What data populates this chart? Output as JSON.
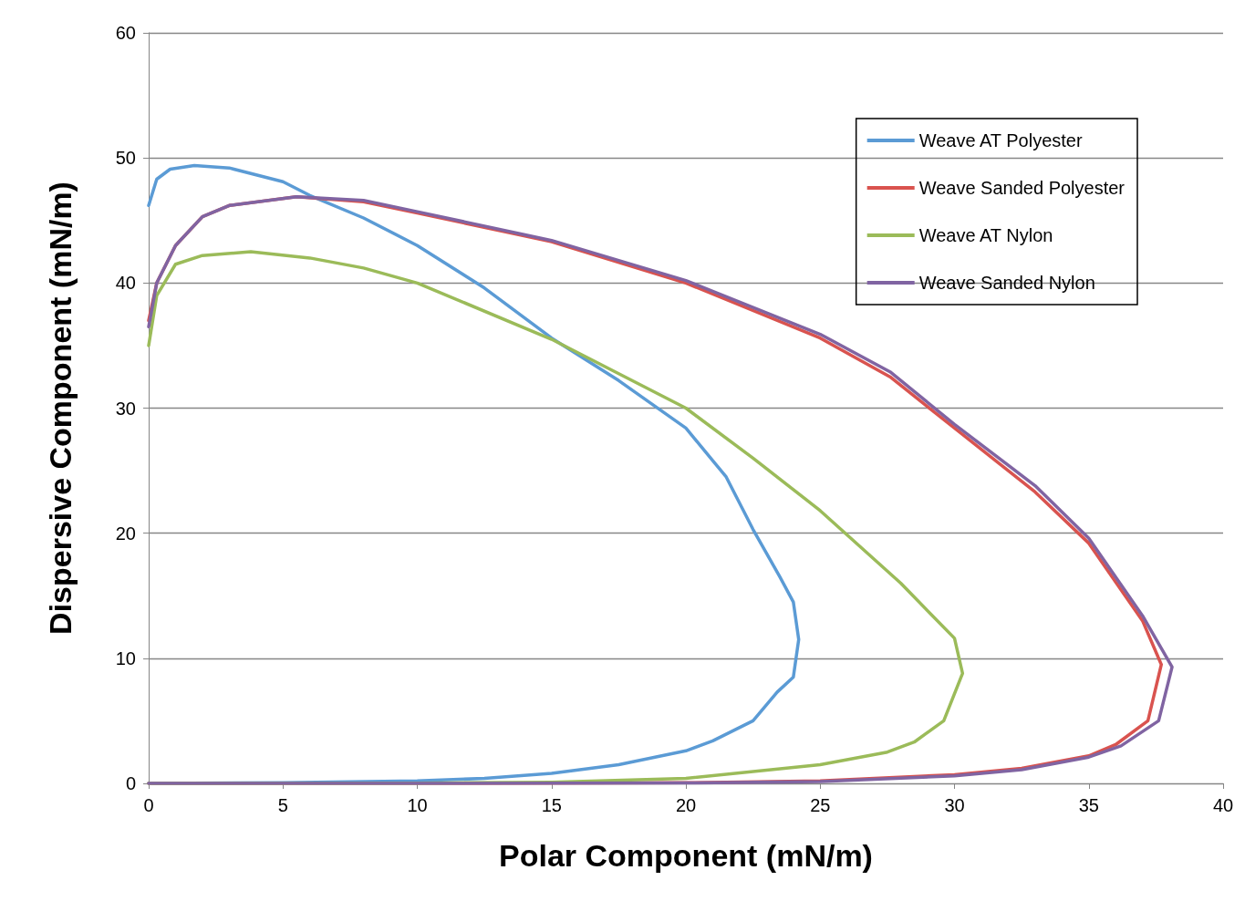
{
  "chart_data": {
    "type": "line",
    "xlabel": "Polar Component (mN/m)",
    "ylabel": "Dispersive Component (mN/m)",
    "xlim": [
      0,
      40
    ],
    "ylim": [
      0,
      60
    ],
    "xticks": [
      0,
      5,
      10,
      15,
      20,
      25,
      30,
      35,
      40
    ],
    "yticks": [
      0,
      10,
      20,
      30,
      40,
      50,
      60
    ],
    "grid": "y",
    "legend": "top right",
    "marker": "none",
    "line_style": "solid",
    "series": [
      {
        "name": "Weave AT Polyester",
        "color": "#5b9bd5",
        "x": [
          0,
          0.3,
          0.8,
          1.7,
          3,
          5,
          6,
          8,
          10,
          12.5,
          15,
          17.5,
          20,
          21.5,
          22.5,
          23.5,
          24,
          24.2,
          24,
          23.4,
          22.5,
          21,
          20,
          17.5,
          15,
          12.5,
          10,
          5,
          0
        ],
        "values": [
          46.2,
          48.3,
          49.1,
          49.4,
          49.2,
          48.1,
          47,
          45.2,
          43,
          39.6,
          35.6,
          32.2,
          28.4,
          24.5,
          20.3,
          16.5,
          14.5,
          11.5,
          8.5,
          7.3,
          5,
          3.4,
          2.6,
          1.5,
          0.8,
          0.4,
          0.2,
          0.05,
          0
        ]
      },
      {
        "name": "Weave Sanded Polyester",
        "color": "#d9534f",
        "x": [
          0,
          0.3,
          1,
          2,
          3,
          5.5,
          8,
          10,
          15,
          20,
          25,
          27.6,
          30,
          33,
          35,
          37,
          37.7,
          37.2,
          36,
          35,
          32.5,
          30,
          25,
          20,
          10,
          0
        ],
        "values": [
          37,
          40,
          43,
          45.3,
          46.2,
          46.9,
          46.5,
          45.6,
          43.3,
          40,
          35.6,
          32.5,
          28.4,
          23.3,
          19.2,
          13,
          9.5,
          5,
          3.1,
          2.2,
          1.2,
          0.7,
          0.2,
          0.05,
          0,
          0
        ]
      },
      {
        "name": "Weave AT Nylon",
        "color": "#9bbb59",
        "x": [
          0,
          0.3,
          1,
          2,
          3.8,
          6,
          8,
          10,
          15,
          20,
          22.5,
          25,
          28,
          30,
          30.3,
          29.6,
          28.5,
          27.5,
          25,
          20,
          15,
          10,
          0
        ],
        "values": [
          35,
          39,
          41.5,
          42.2,
          42.5,
          42,
          41.2,
          40,
          35.5,
          30,
          26,
          21.8,
          16,
          11.6,
          8.8,
          5,
          3.3,
          2.5,
          1.5,
          0.4,
          0.1,
          0.02,
          0
        ]
      },
      {
        "name": "Weave Sanded Nylon",
        "color": "#8064a2",
        "x": [
          0,
          0.3,
          1,
          2,
          3,
          5.5,
          8,
          10,
          15,
          20,
          25,
          27.6,
          30,
          33,
          35,
          37,
          38.1,
          37.6,
          36.2,
          35,
          32.5,
          30,
          25,
          20,
          10,
          0
        ],
        "values": [
          36.5,
          40,
          43,
          45.3,
          46.2,
          46.9,
          46.6,
          45.7,
          43.4,
          40.2,
          35.9,
          32.9,
          28.7,
          23.8,
          19.6,
          13.4,
          9.3,
          5,
          3,
          2.1,
          1.1,
          0.6,
          0.15,
          0.03,
          0,
          0
        ]
      }
    ]
  }
}
